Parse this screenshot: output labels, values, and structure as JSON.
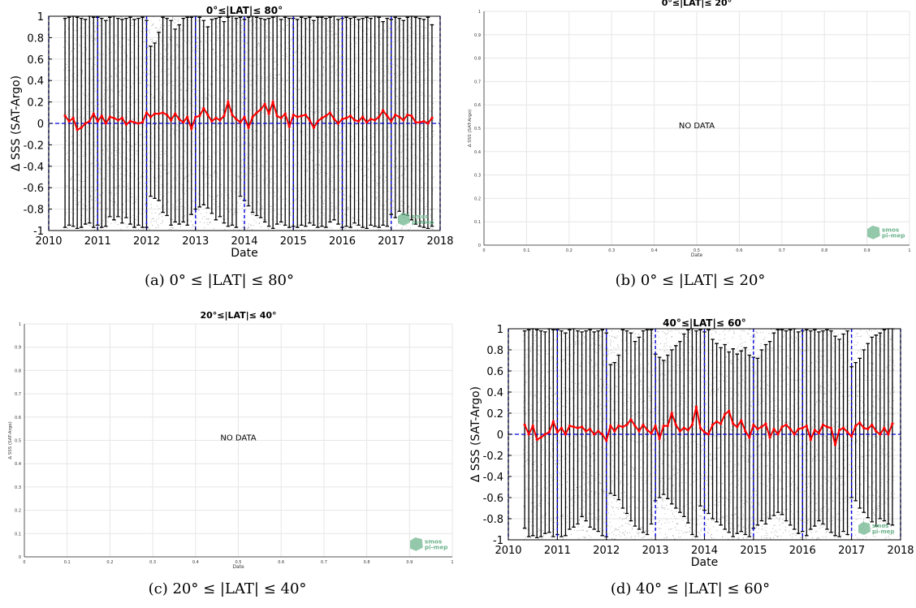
{
  "colors": {
    "median": "#ff0000",
    "bars": "#000000",
    "scatter": "#555555",
    "year_lines": "#0000dd",
    "zero_line": "#0000dd",
    "grid": "#e6e6e6",
    "logo": "#6fb58e"
  },
  "logo": {
    "line1": "smos",
    "line2": "pi-mep"
  },
  "captions": {
    "a": "(a) 0° ≤ |LAT| ≤ 80°",
    "b": "(b) 0° ≤ |LAT| ≤ 20°",
    "c": "(c) 20° ≤ |LAT| ≤ 40°",
    "d": "(d) 40° ≤ |LAT| ≤ 60°"
  },
  "chart_data": [
    {
      "id": "a",
      "type": "line",
      "title": "0°≤|LAT|≤ 80°",
      "xlabel": "Date",
      "ylabel": "Δ SSS (SAT-Argo)",
      "xlim": [
        2010,
        2018
      ],
      "ylim": [
        -1,
        1
      ],
      "x_ticks": [
        "2010",
        "2011",
        "2012",
        "2013",
        "2014",
        "2015",
        "2016",
        "2017",
        "2018"
      ],
      "y_ticks": [
        "-1",
        "-0.8",
        "-0.6",
        "-0.4",
        "-0.2",
        "0",
        "0.2",
        "0.4",
        "0.6",
        "0.8",
        "1"
      ],
      "grid": true,
      "series": [
        {
          "x_start": "2010-05",
          "step": "month",
          "values": [
            0.07,
            0.02,
            0.05,
            -0.06,
            -0.04,
            0.0,
            0.02,
            0.09,
            0.02,
            0.07,
            0.0,
            0.06,
            0.05,
            0.03,
            0.05,
            -0.01,
            0.02,
            0.01,
            0.0,
            0.01,
            0.1,
            0.06,
            0.09,
            0.09,
            0.1,
            0.08,
            0.03,
            0.09,
            0.04,
            0.01,
            0.06,
            -0.05,
            0.06,
            0.07,
            0.14,
            0.08,
            0.02,
            0.05,
            0.03,
            0.07,
            0.2,
            0.08,
            0.04,
            0.01,
            0.06,
            -0.04,
            0.06,
            0.1,
            0.13,
            0.18,
            0.09,
            0.2,
            0.07,
            0.05,
            0.09,
            -0.03,
            0.08,
            0.06,
            0.07,
            0.08,
            0.03,
            -0.04,
            0.02,
            0.05,
            0.07,
            0.1,
            0.04,
            0.0,
            0.04,
            0.05,
            0.07,
            0.03,
            0.02,
            0.06,
            0.01,
            0.04,
            0.03,
            0.06,
            0.12,
            0.07,
            0.02,
            0.08,
            0.06,
            0.03,
            0.08,
            0.07,
            0.01,
            0.01,
            0.02,
            0.0,
            0.05
          ]
        }
      ],
      "bars_upper": [
        0.98,
        0.99,
        1.0,
        0.99,
        0.98,
        0.97,
        1.0,
        0.99,
        0.99,
        0.98,
        0.96,
        0.99,
        1.0,
        0.98,
        0.97,
        0.98,
        0.99,
        0.97,
        0.98,
        0.99,
        0.96,
        0.72,
        0.75,
        0.85,
        0.99,
        0.98,
        0.96,
        0.88,
        0.92,
        0.98,
        0.99,
        0.99,
        1.0,
        0.99,
        0.96,
        0.9,
        0.97,
        0.98,
        0.99,
        0.95,
        0.99,
        1.0,
        0.98,
        0.99,
        0.97,
        0.99,
        1.0,
        0.99,
        0.98,
        0.97,
        0.98,
        0.99,
        1.0,
        0.97,
        0.99,
        0.98,
        0.98,
        0.97,
        0.99,
        0.98,
        0.99,
        0.96,
        0.99,
        0.99,
        0.98,
        0.99,
        1.0,
        0.97,
        0.98,
        0.99,
        0.98,
        0.99,
        0.97,
        0.98,
        0.99,
        0.98,
        1.0,
        0.99,
        0.95,
        0.98,
        0.97,
        0.99,
        0.98,
        0.96,
        0.99,
        1.0,
        0.99,
        0.98,
        0.97,
        0.99,
        0.92
      ],
      "bars_lower": [
        -0.97,
        -0.95,
        -0.96,
        -0.98,
        -0.97,
        -0.94,
        -0.93,
        -0.97,
        -0.95,
        -0.97,
        -0.96,
        -0.87,
        -0.9,
        -0.87,
        -0.93,
        -0.88,
        -0.94,
        -0.97,
        -0.95,
        -0.97,
        -0.97,
        -0.68,
        -0.7,
        -0.72,
        -0.83,
        -0.86,
        -0.95,
        -0.92,
        -0.94,
        -0.92,
        -0.95,
        -0.85,
        -0.8,
        -0.78,
        -0.76,
        -0.79,
        -0.84,
        -0.9,
        -0.87,
        -0.93,
        -0.96,
        -0.95,
        -0.97,
        -0.68,
        -0.72,
        -0.77,
        -0.83,
        -0.86,
        -0.88,
        -0.92,
        -0.96,
        -0.98,
        -0.94,
        -0.92,
        -0.95,
        -0.97,
        -0.96,
        -0.97,
        -0.95,
        -0.96,
        -0.93,
        -0.95,
        -0.97,
        -0.96,
        -0.97,
        -0.92,
        -0.9,
        -0.94,
        -0.97,
        -0.96,
        -0.97,
        -0.93,
        -0.95,
        -0.97,
        -0.98,
        -0.95,
        -0.96,
        -0.97,
        -0.95,
        -0.96,
        -0.85,
        -0.88,
        -0.82,
        -0.85,
        -0.86,
        -0.9,
        -0.94,
        -0.96,
        -0.97,
        -0.98,
        -0.96
      ]
    },
    {
      "id": "b",
      "type": "line",
      "title": "0°≤|LAT|≤ 20°",
      "xlabel": "Date",
      "ylabel": "Δ SSS (SAT-Argo)",
      "xlim": [
        0,
        1
      ],
      "ylim": [
        0,
        1
      ],
      "x_ticks": [
        "0",
        "0.1",
        "0.2",
        "0.3",
        "0.4",
        "0.5",
        "0.6",
        "0.7",
        "0.8",
        "0.9",
        "1"
      ],
      "y_ticks": [
        "0",
        "0.1",
        "0.2",
        "0.3",
        "0.4",
        "0.5",
        "0.6",
        "0.7",
        "0.8",
        "0.9",
        "1"
      ],
      "grid": true,
      "annotation": "NO DATA",
      "series": []
    },
    {
      "id": "c",
      "type": "line",
      "title": "20°≤|LAT|≤ 40°",
      "xlabel": "Date",
      "ylabel": "Δ SSS (SAT-Argo)",
      "xlim": [
        0,
        1
      ],
      "ylim": [
        0,
        1
      ],
      "x_ticks": [
        "0",
        "0.1",
        "0.2",
        "0.3",
        "0.4",
        "0.5",
        "0.6",
        "0.7",
        "0.8",
        "0.9",
        "1"
      ],
      "y_ticks": [
        "0",
        "0.1",
        "0.2",
        "0.3",
        "0.4",
        "0.5",
        "0.6",
        "0.7",
        "0.8",
        "0.9",
        "1"
      ],
      "grid": true,
      "annotation": "NO DATA",
      "series": []
    },
    {
      "id": "d",
      "type": "line",
      "title": "40°≤|LAT|≤ 60°",
      "xlabel": "Date",
      "ylabel": "Δ SSS (SAT-Argo)",
      "xlim": [
        2010,
        2018
      ],
      "ylim": [
        -1,
        1
      ],
      "x_ticks": [
        "2010",
        "2011",
        "2012",
        "2013",
        "2014",
        "2015",
        "2016",
        "2017",
        "2018"
      ],
      "y_ticks": [
        "-1",
        "-0.8",
        "-0.6",
        "-0.4",
        "-0.2",
        "0",
        "0.2",
        "0.4",
        "0.6",
        "0.8",
        "1"
      ],
      "grid": true,
      "series": [
        {
          "x_start": "2010-05",
          "step": "month",
          "values": [
            0.09,
            0.0,
            0.08,
            -0.05,
            -0.03,
            0.0,
            0.02,
            0.12,
            0.02,
            0.06,
            0.0,
            0.08,
            0.07,
            0.06,
            0.07,
            0.03,
            0.05,
            0.0,
            0.03,
            0.0,
            -0.06,
            0.08,
            0.03,
            0.08,
            0.07,
            0.09,
            0.14,
            0.08,
            0.03,
            0.09,
            0.04,
            0.01,
            0.08,
            -0.04,
            0.08,
            0.08,
            0.2,
            0.09,
            0.03,
            0.06,
            0.04,
            0.09,
            0.26,
            0.06,
            0.02,
            0.0,
            0.09,
            0.12,
            0.1,
            0.19,
            0.22,
            0.1,
            0.07,
            0.13,
            0.03,
            -0.03,
            0.09,
            0.05,
            0.07,
            0.1,
            -0.03,
            0.05,
            0.0,
            0.07,
            0.09,
            0.05,
            0.0,
            0.05,
            0.06,
            0.08,
            -0.05,
            0.04,
            0.01,
            0.09,
            0.07,
            0.06,
            -0.1,
            0.04,
            0.06,
            0.02,
            -0.02,
            0.08,
            0.11,
            0.06,
            0.05,
            0.09,
            0.03,
            0.0,
            0.06,
            0.0,
            0.1
          ]
        }
      ],
      "bars_upper": [
        0.98,
        0.99,
        1.0,
        0.99,
        0.98,
        0.97,
        1.0,
        0.99,
        0.99,
        0.98,
        0.96,
        0.99,
        1.0,
        0.98,
        0.97,
        0.98,
        0.99,
        0.97,
        0.98,
        0.99,
        0.96,
        0.66,
        0.68,
        0.75,
        0.99,
        0.98,
        0.96,
        0.88,
        0.92,
        0.98,
        0.99,
        0.99,
        0.76,
        0.73,
        0.7,
        0.75,
        0.8,
        0.84,
        0.88,
        0.95,
        0.99,
        1.0,
        0.98,
        0.99,
        0.97,
        0.99,
        0.9,
        0.86,
        0.82,
        0.85,
        0.78,
        0.81,
        0.76,
        0.79,
        0.82,
        0.75,
        0.73,
        0.72,
        0.8,
        0.85,
        0.88,
        0.96,
        0.99,
        0.99,
        0.98,
        0.99,
        1.0,
        0.97,
        0.98,
        0.99,
        0.98,
        0.99,
        0.97,
        0.98,
        0.99,
        0.98,
        0.93,
        0.9,
        0.95,
        0.98,
        0.64,
        0.68,
        0.72,
        0.8,
        0.86,
        0.92,
        0.94,
        0.96,
        0.99,
        1.0,
        1.0
      ],
      "bars_lower": [
        -0.89,
        -0.97,
        -0.96,
        -0.98,
        -0.97,
        -0.94,
        -0.93,
        -0.97,
        -0.95,
        -0.97,
        -0.96,
        -0.9,
        -0.88,
        -0.85,
        -0.78,
        -0.82,
        -0.88,
        -0.9,
        -0.92,
        -0.96,
        -0.97,
        -0.56,
        -0.58,
        -0.62,
        -0.7,
        -0.75,
        -0.82,
        -0.87,
        -0.9,
        -0.93,
        -0.95,
        -0.85,
        -0.63,
        -0.6,
        -0.57,
        -0.61,
        -0.66,
        -0.7,
        -0.74,
        -0.78,
        -0.84,
        -0.95,
        -0.97,
        -0.68,
        -0.72,
        -0.75,
        -0.8,
        -0.83,
        -0.86,
        -0.9,
        -0.93,
        -0.97,
        -0.94,
        -0.92,
        -0.95,
        -0.97,
        -0.89,
        -0.86,
        -0.82,
        -0.85,
        -0.8,
        -0.77,
        -0.74,
        -0.76,
        -0.82,
        -0.86,
        -0.9,
        -0.94,
        -0.92,
        -0.96,
        -0.9,
        -0.87,
        -0.82,
        -0.85,
        -0.9,
        -0.93,
        -0.96,
        -0.97,
        -0.92,
        -0.95,
        -0.6,
        -0.63,
        -0.7,
        -0.74,
        -0.79,
        -0.83,
        -0.87,
        -0.8,
        -0.82,
        -0.85,
        -0.86
      ]
    }
  ]
}
